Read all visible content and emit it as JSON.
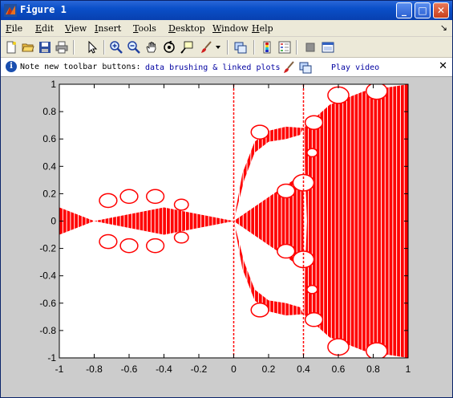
{
  "window": {
    "title": "Figure 1",
    "minimize_label": "_",
    "maximize_label": "□",
    "close_label": "✕"
  },
  "menu": {
    "items": [
      "File",
      "Edit",
      "View",
      "Insert",
      "Tools",
      "Desktop",
      "Window",
      "Help"
    ],
    "overflow": "↘"
  },
  "toolbar": {
    "buttons": [
      "new-figure",
      "open-file",
      "save",
      "print",
      "edit-plot",
      "zoom-in",
      "zoom-out",
      "pan",
      "rotate-3d",
      "data-cursor",
      "brush",
      "link-plot",
      "colorbar",
      "legend",
      "hide-plot-tools",
      "show-plot-tools"
    ]
  },
  "infobar": {
    "note": "Note new toolbar buttons:",
    "link1": "data brushing & linked plots",
    "link2": "Play video",
    "close_label": "✕"
  },
  "colors": {
    "fractal": "#ff0000",
    "axes_bg": "#ffffff",
    "figure_bg": "#cccccc"
  },
  "chart_data": {
    "type": "scatter",
    "title": "",
    "xlabel": "",
    "ylabel": "",
    "xlim": [
      -1,
      1
    ],
    "ylim": [
      -1,
      1
    ],
    "xticks": [
      -1,
      -0.8,
      -0.6,
      -0.4,
      -0.2,
      0,
      0.2,
      0.4,
      0.6,
      0.8,
      1
    ],
    "yticks": [
      1,
      0.8,
      0.6,
      0.4,
      0.2,
      0,
      -0.2,
      -0.4,
      -0.6,
      -0.8,
      -1
    ],
    "xtick_labels": [
      "-1",
      "-0.8",
      "-0.6",
      "-0.4",
      "-0.2",
      "0",
      "0.2",
      "0.4",
      "0.6",
      "0.8",
      "1"
    ],
    "ytick_labels": [
      "1",
      "0.8",
      "0.6",
      "0.4",
      "0.2",
      "0",
      "-0.2",
      "-0.4",
      "-0.6",
      "-0.8",
      "-1"
    ],
    "regions": [
      {
        "name": "",
        "points": [
          [
            -1,
            0
          ],
          [
            -0.8,
            0
          ],
          [
            -1,
            0.1
          ],
          [
            -1,
            -0.1
          ]
        ]
      },
      {
        "name": "",
        "points": [
          [
            -0.8,
            0
          ],
          [
            0,
            0
          ],
          [
            -0.4,
            0.1
          ],
          [
            -0.4,
            -0.1
          ]
        ]
      },
      {
        "name": "",
        "points": [
          [
            0,
            0
          ],
          [
            0.4,
            0.35
          ],
          [
            0.4,
            -0.35
          ]
        ]
      },
      {
        "name": "",
        "points": [
          [
            0.4,
            0.68
          ],
          [
            0.55,
            0.85
          ],
          [
            1,
            1
          ],
          [
            1,
            -1
          ],
          [
            0.55,
            -0.85
          ],
          [
            0.4,
            -0.68
          ]
        ]
      }
    ],
    "grid": false
  }
}
